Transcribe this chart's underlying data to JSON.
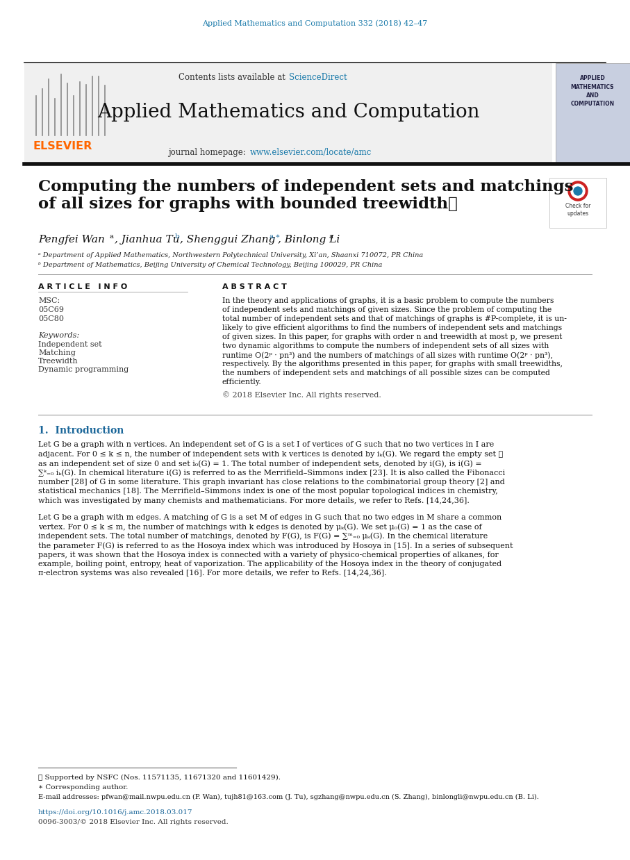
{
  "bg_color": "#ffffff",
  "header_bg": "#f0f0f0",
  "journal_title": "Applied Mathematics and Computation",
  "journal_ref": "Applied Mathematics and Computation 332 (2018) 42–47",
  "journal_ref_color": "#1a7aaa",
  "contents_text": "Contents lists available at ",
  "sciencedirect_text": "ScienceDirect",
  "sciencedirect_color": "#1a7aaa",
  "homepage_text": "journal homepage: ",
  "homepage_url": "www.elsevier.com/locate/amc",
  "homepage_url_color": "#1a7aaa",
  "elsevier_color": "#ff6600",
  "paper_title_line1": "Computing the numbers of independent sets and matchings",
  "paper_title_line2": "of all sizes for graphs with bounded treewidth",
  "star_symbol": "☆",
  "affil_a": "ᵃ Department of Applied Mathematics, Northwestern Polytechnical University, Xi’an, Shaanxi 710072, PR China",
  "affil_b": "ᵇ Department of Mathematics, Beijing University of Chemical Technology, Beijing 100029, PR China",
  "article_info_title": "A R T I C L E   I N F O",
  "abstract_title": "A B S T R A C T",
  "msc_label": "MSC:",
  "msc_codes": [
    "05C69",
    "05C80"
  ],
  "keywords_label": "Keywords:",
  "keywords": [
    "Independent set",
    "Matching",
    "Treewidth",
    "Dynamic programming"
  ],
  "copyright_text": "© 2018 Elsevier Inc. All rights reserved.",
  "intro_title": "1.  Introduction",
  "footnote_star": "⋆ Supported by NSFC (Nos. 11571135, 11671320 and 11601429).",
  "footnote_corr": "∗ Corresponding author.",
  "footnote_email": "E-mail addresses: pfwan@mail.nwpu.edu.cn (P. Wan), tujh81@163.com (J. Tu), sgzhang@nwpu.edu.cn (S. Zhang), binlongli@nwpu.edu.cn (B. Li).",
  "doi_text": "https://doi.org/10.1016/j.amc.2018.03.017",
  "issn_text": "0096-3003/© 2018 Elsevier Inc. All rights reserved.",
  "text_color": "#000000",
  "link_color": "#1a6699",
  "abstract_lines": [
    "In the theory and applications of graphs, it is a basic problem to compute the numbers",
    "of independent sets and matchings of given sizes. Since the problem of computing the",
    "total number of independent sets and that of matchings of graphs is #P-complete, it is un-",
    "likely to give efficient algorithms to find the numbers of independent sets and matchings",
    "of given sizes. In this paper, for graphs with order n and treewidth at most p, we present",
    "two dynamic algorithms to compute the numbers of independent sets of all sizes with",
    "runtime O(2ᵖ · pn³) and the numbers of matchings of all sizes with runtime O(2ᵖ · pn³),",
    "respectively. By the algorithms presented in this paper, for graphs with small treewidths,",
    "the numbers of independent sets and matchings of all possible sizes can be computed",
    "efficiently."
  ],
  "intro1_lines": [
    "Let G be a graph with n vertices. An independent set of G is a set I of vertices of G such that no two vertices in I are",
    "adjacent. For 0 ≤ k ≤ n, the number of independent sets with k vertices is denoted by iₖ(G). We regard the empty set ∅",
    "as an independent set of size 0 and set i₀(G) = 1. The total number of independent sets, denoted by i(G), is i(G) =",
    "∑ᵏ₌₀ iₖ(G). In chemical literature i(G) is referred to as the Merrifield–Simmons index [23]. It is also called the Fibonacci",
    "number [28] of G in some literature. This graph invariant has close relations to the combinatorial group theory [2] and",
    "statistical mechanics [18]. The Merrifield–Simmons index is one of the most popular topological indices in chemistry,",
    "which was investigated by many chemists and mathematicians. For more details, we refer to Refs. [14,24,36]."
  ],
  "intro2_lines": [
    "Let G be a graph with m edges. A matching of G is a set M of edges in G such that no two edges in M share a common",
    "vertex. For 0 ≤ k ≤ m, the number of matchings with k edges is denoted by μₖ(G). We set μ₀(G) = 1 as the case of",
    "independent sets. The total number of matchings, denoted by F(G), is F(G) = ∑ᵐ₌₀ μₖ(G). In the chemical literature",
    "the parameter F(G) is referred to as the Hosoya index which was introduced by Hosoya in [15]. In a series of subsequent",
    "papers, it was shown that the Hosoya index is connected with a variety of physico-chemical properties of alkanes, for",
    "example, boiling point, entropy, heat of vaporization. The applicability of the Hosoya index in the theory of conjugated",
    "π-electron systems was also revealed [16]. For more details, we refer to Refs. [14,24,36]."
  ]
}
